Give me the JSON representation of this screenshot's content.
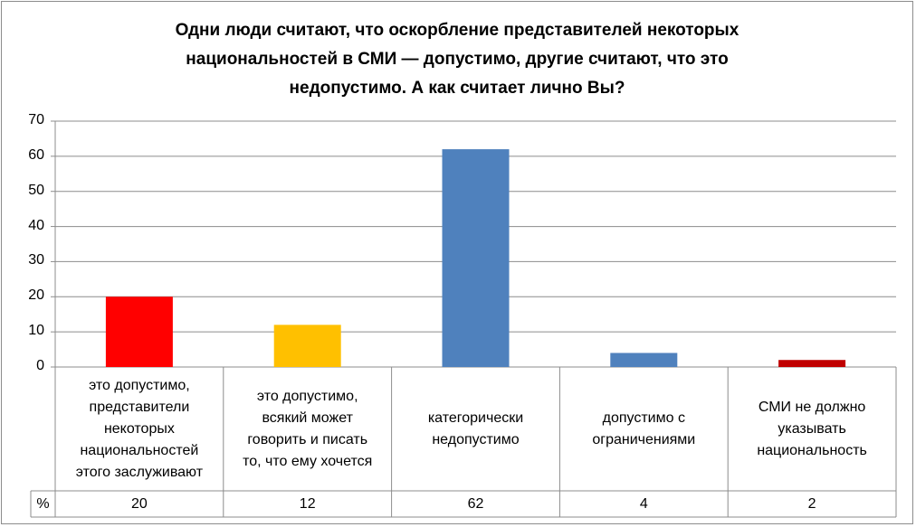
{
  "chart_data": {
    "type": "bar",
    "title_lines": [
      "Одни люди считают, что оскорбление представителей некоторых",
      "национальностей в СМИ — допустимо, другие считают, что это",
      "недопустимо. А как считает лично Вы?"
    ],
    "categories": [
      [
        "это допустимо,",
        "представители",
        "некоторых",
        "национальностей",
        "этого заслуживают"
      ],
      [
        "это допустимо,",
        "всякий может",
        "говорить и писать",
        "то, что ему хочется"
      ],
      [
        "категорически",
        "недопустимо"
      ],
      [
        "допустимо с",
        "ограничениями"
      ],
      [
        "СМИ не должно",
        "указывать",
        "национальность"
      ]
    ],
    "values": [
      20,
      12,
      62,
      4,
      2
    ],
    "bar_colors": [
      "#ff0000",
      "#ffc000",
      "#4f81bd",
      "#4f81bd",
      "#c00000"
    ],
    "table_row_label": "%",
    "table_values": [
      "20",
      "12",
      "62",
      "4",
      "2"
    ],
    "ylim": [
      0,
      70
    ],
    "yticks": [
      "0",
      "10",
      "20",
      "30",
      "40",
      "50",
      "60",
      "70"
    ],
    "grid": true,
    "legend": "none"
  }
}
